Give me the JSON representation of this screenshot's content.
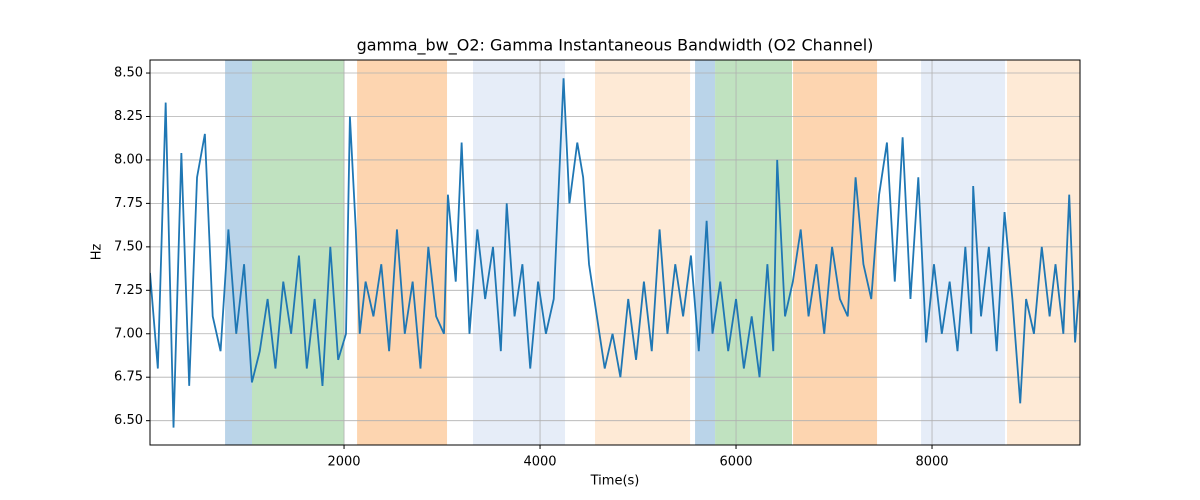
{
  "chart_data": {
    "type": "line",
    "title": "gamma_bw_O2: Gamma Instantaneous Bandwidth (O2 Channel)",
    "xlabel": "Time(s)",
    "ylabel": "Hz",
    "x": [
      20,
      100,
      180,
      260,
      340,
      420,
      500,
      580,
      660,
      740,
      820,
      900,
      980,
      1060,
      1140,
      1220,
      1300,
      1380,
      1460,
      1540,
      1620,
      1700,
      1780,
      1860,
      1940,
      2020,
      2060,
      2120,
      2160,
      2220,
      2300,
      2380,
      2460,
      2540,
      2620,
      2700,
      2780,
      2860,
      2940,
      3020,
      3060,
      3140,
      3200,
      3280,
      3360,
      3440,
      3520,
      3600,
      3660,
      3740,
      3820,
      3900,
      3980,
      4060,
      4140,
      4240,
      4300,
      4380,
      4440,
      4500,
      4580,
      4660,
      4740,
      4820,
      4900,
      4980,
      5060,
      5140,
      5220,
      5300,
      5380,
      5460,
      5540,
      5620,
      5700,
      5760,
      5840,
      5920,
      6000,
      6080,
      6160,
      6240,
      6320,
      6380,
      6420,
      6500,
      6580,
      6660,
      6740,
      6820,
      6900,
      6980,
      7060,
      7140,
      7220,
      7300,
      7380,
      7460,
      7540,
      7620,
      7700,
      7780,
      7860,
      7940,
      8020,
      8100,
      8180,
      8260,
      8340,
      8400,
      8420,
      8500,
      8580,
      8660,
      8740,
      8820,
      8900,
      8960,
      9040,
      9120,
      9200,
      9260,
      9340,
      9400,
      9460,
      9500
    ],
    "values": [
      7.35,
      6.8,
      8.33,
      6.46,
      8.04,
      6.7,
      7.9,
      8.15,
      7.1,
      6.9,
      7.6,
      7.0,
      7.4,
      6.72,
      6.9,
      7.2,
      6.8,
      7.3,
      7.0,
      7.45,
      6.8,
      7.2,
      6.7,
      7.5,
      6.85,
      7.0,
      8.25,
      7.6,
      7.0,
      7.3,
      7.1,
      7.4,
      6.9,
      7.6,
      7.0,
      7.3,
      6.8,
      7.5,
      7.1,
      7.0,
      7.8,
      7.3,
      8.1,
      7.0,
      7.6,
      7.2,
      7.5,
      6.9,
      7.75,
      7.1,
      7.4,
      6.8,
      7.3,
      7.0,
      7.2,
      8.47,
      7.75,
      8.1,
      7.9,
      7.4,
      7.1,
      6.8,
      7.0,
      6.75,
      7.2,
      6.85,
      7.3,
      6.9,
      7.6,
      7.0,
      7.4,
      7.1,
      7.45,
      6.9,
      7.65,
      7.0,
      7.3,
      6.9,
      7.2,
      6.8,
      7.1,
      6.75,
      7.4,
      6.9,
      8.0,
      7.1,
      7.3,
      7.6,
      7.1,
      7.4,
      7.0,
      7.5,
      7.2,
      7.1,
      7.9,
      7.4,
      7.2,
      7.8,
      8.1,
      7.3,
      8.13,
      7.2,
      7.9,
      6.95,
      7.4,
      7.0,
      7.3,
      6.9,
      7.5,
      7.0,
      7.85,
      7.1,
      7.5,
      6.9,
      7.7,
      7.2,
      6.6,
      7.2,
      7.0,
      7.5,
      7.1,
      7.4,
      7.0,
      7.8,
      6.95,
      7.25
    ],
    "color": "#1f77b4",
    "spans": [
      {
        "start": 786,
        "end": 1061,
        "color": "#bad4e9"
      },
      {
        "start": 1061,
        "end": 2000,
        "color": "#c0e2c0"
      },
      {
        "start": 2133,
        "end": 3051,
        "color": "#fdd5b0"
      },
      {
        "start": 3316,
        "end": 4255,
        "color": "#e6edf8"
      },
      {
        "start": 4561,
        "end": 5531,
        "color": "#feead6"
      },
      {
        "start": 5582,
        "end": 5786,
        "color": "#bad4e9"
      },
      {
        "start": 5786,
        "end": 6571,
        "color": "#c0e2c0"
      },
      {
        "start": 6582,
        "end": 7439,
        "color": "#fdd5b0"
      },
      {
        "start": 7888,
        "end": 8745,
        "color": "#e6edf8"
      },
      {
        "start": 8765,
        "end": 9510,
        "color": "#feead6"
      }
    ],
    "xlim": [
      20,
      9510
    ],
    "ylim": [
      6.36,
      8.575
    ],
    "xticks": [
      2000,
      4000,
      6000,
      8000
    ],
    "yticks": [
      {
        "value": 6.5,
        "label": "6.50"
      },
      {
        "value": 6.75,
        "label": "6.75"
      },
      {
        "value": 7,
        "label": "7.00"
      },
      {
        "value": 7.25,
        "label": "7.25"
      },
      {
        "value": 7.5,
        "label": "7.50"
      },
      {
        "value": 7.75,
        "label": "7.75"
      },
      {
        "value": 8,
        "label": "8.00"
      },
      {
        "value": 8.25,
        "label": "8.25"
      },
      {
        "value": 8.5,
        "label": "8.50"
      }
    ],
    "grid": true
  }
}
